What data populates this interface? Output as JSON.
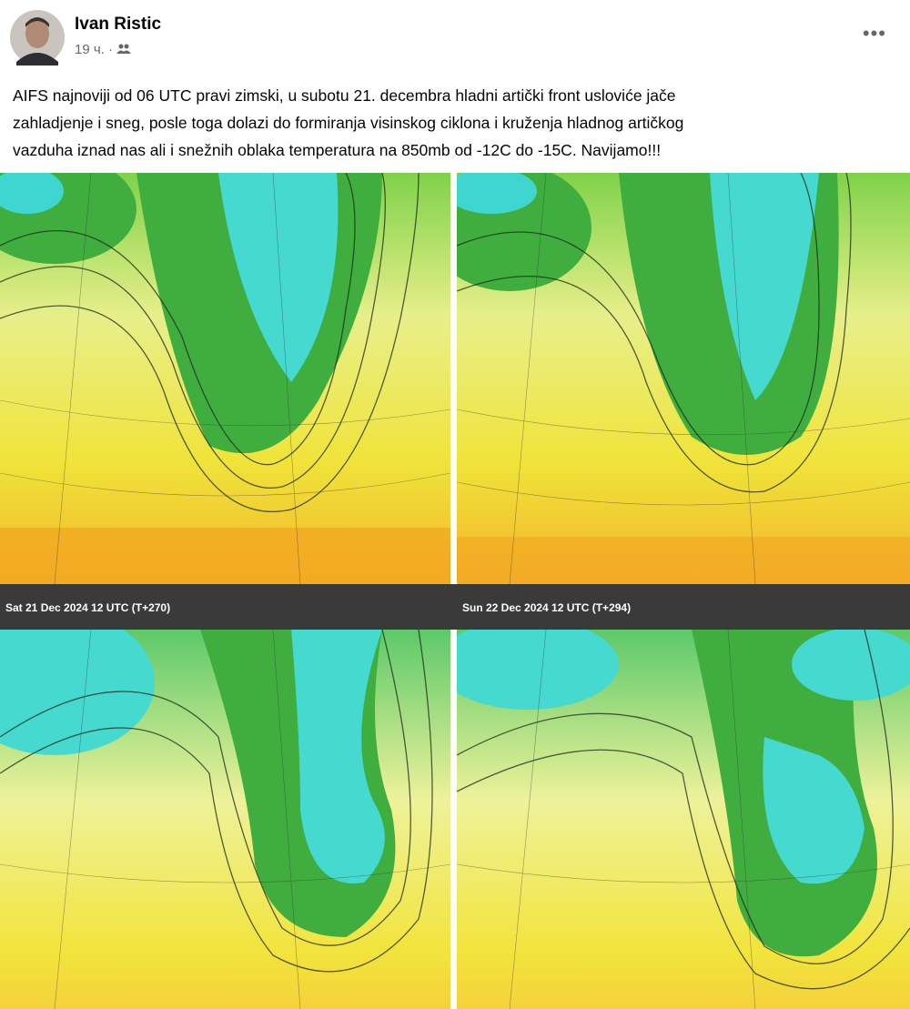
{
  "post": {
    "author": "Ivan Ristic",
    "time": "19 ч.",
    "text_lines": [
      "AIFS najnoviji od 06 UTC pravi zimski, u subotu 21. decembra hladni artički front usloviće jače",
      "zahladjenje i sneg, posle toga dolazi do formiranja visinskog ciklona i kruženja hladnog artičkog",
      "vazduha iznad nas ali i snežnih oblaka temperatura na 850mb od -12C do -15C. Navijamo!!!"
    ]
  },
  "maps": [
    {
      "caption": "Sat 21 Dec 2024 12 UTC (T+270)"
    },
    {
      "caption": "Sun 22 Dec 2024 12 UTC (T+294)"
    }
  ]
}
